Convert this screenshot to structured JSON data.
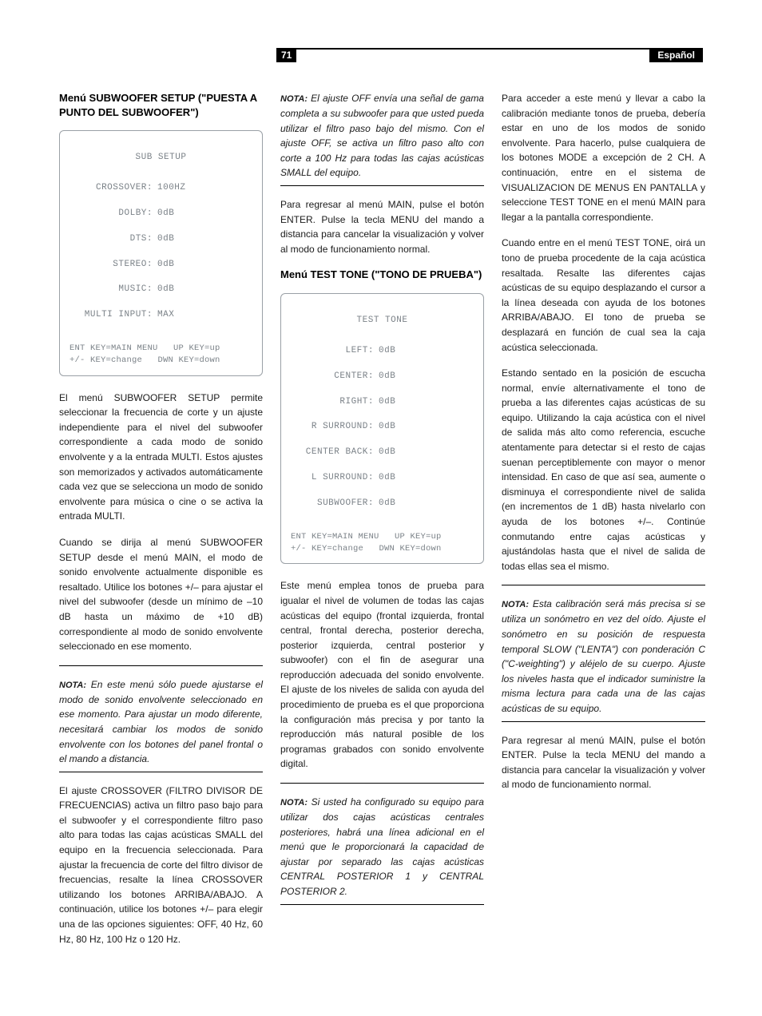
{
  "header": {
    "page_number": "71",
    "language": "Español"
  },
  "col1": {
    "h_sub": "Menú SUBWOOFER SETUP (\"PUESTA A PUNTO DEL SUBWOOFER\")",
    "osd_sub": {
      "title": "SUB SETUP",
      "rows": [
        {
          "k": "CROSSOVER:",
          "v": "100HZ"
        },
        {
          "k": "DOLBY:",
          "v": "0dB"
        },
        {
          "k": "DTS:",
          "v": "0dB"
        },
        {
          "k": "STEREO:",
          "v": "0dB"
        },
        {
          "k": "MUSIC:",
          "v": "0dB"
        },
        {
          "k": "MULTI INPUT:",
          "v": "MAX"
        }
      ],
      "footer1": "ENT KEY=MAIN MENU   UP KEY=up",
      "footer2": "+/- KEY=change   DWN KEY=down"
    },
    "p1": "El menú SUBWOOFER SETUP permite seleccionar la frecuencia de corte y un ajuste independiente para el nivel del subwoofer correspondiente a cada modo de sonido envolvente y a la entrada MULTI. Estos ajustes son memorizados y activados automáticamente cada vez que se selecciona un modo de sonido envolvente para música o cine o se activa la entrada MULTI.",
    "p2": "Cuando se dirija al menú SUBWOOFER SETUP desde el menú MAIN, el modo de sonido envolvente actualmente disponible es resaltado. Utilice los botones +/– para ajustar el nivel del subwoofer (desde un mínimo de –10 dB hasta un máximo de +10 dB) correspondiente al modo de sonido envolvente seleccionado en ese momento.",
    "note1": "En este menú sólo puede ajustarse el modo de sonido envolvente seleccionado en ese momento. Para ajustar un modo diferente, necesitará cambiar los modos de sonido envolvente con los botones del panel frontal o el mando a distancia.",
    "p3": "El ajuste CROSSOVER (FILTRO DIVISOR DE FRECUENCIAS) activa un filtro paso bajo para el subwoofer y el correspondiente filtro paso alto para todas las cajas acústicas SMALL del equipo en la frecuencia seleccionada. Para ajustar la frecuencia de corte del filtro divisor de frecuencias, resalte la línea CROSSOVER utilizando los botones ARRIBA/ABAJO. A continuación, utilice los botones +/– para elegir una de las opciones siguientes: OFF, 40 Hz, 60 Hz, 80 Hz, 100 Hz o 120 Hz."
  },
  "col2": {
    "note1": "El ajuste OFF envía una señal de gama completa a su subwoofer para que usted pueda utilizar el filtro paso bajo del mismo. Con el ajuste OFF, se activa un filtro paso alto con corte a 100 Hz para todas las cajas acústicas SMALL del equipo.",
    "p1": "Para regresar al menú MAIN, pulse el botón ENTER. Pulse la tecla MENU del mando a distancia para cancelar la visualización y volver al modo de funcionamiento normal.",
    "h_tt": "Menú TEST TONE (\"TONO DE PRUEBA\")",
    "osd_tt": {
      "title": "TEST TONE",
      "rows": [
        {
          "k": "LEFT:",
          "v": "0dB"
        },
        {
          "k": "CENTER:",
          "v": "0dB"
        },
        {
          "k": "RIGHT:",
          "v": "0dB"
        },
        {
          "k": "R SURROUND:",
          "v": "0dB"
        },
        {
          "k": "CENTER BACK:",
          "v": "0dB"
        },
        {
          "k": "L SURROUND:",
          "v": "0dB"
        },
        {
          "k": "SUBWOOFER:",
          "v": "0dB"
        }
      ],
      "footer1": "ENT KEY=MAIN MENU   UP KEY=up",
      "footer2": "+/- KEY=change   DWN KEY=down"
    },
    "p2": "Este menú emplea tonos de prueba para igualar el nivel de volumen de todas las cajas acústicas del equipo (frontal izquierda, frontal central, frontal derecha, posterior derecha, posterior izquierda, central posterior y subwoofer) con el fin de asegurar una reproducción adecuada del sonido envolvente. El ajuste de los niveles de salida con ayuda del procedimiento de prueba es el que proporciona la configuración más precisa y por tanto la reproducción más natural posible de los programas grabados con sonido envolvente digital.",
    "note2": "Si usted ha configurado su equipo para utilizar dos cajas acústicas centrales posteriores, habrá una línea adicional en el menú que le proporcionará la capacidad de ajustar por separado las cajas acústicas CENTRAL POSTERIOR 1 y CENTRAL POSTERIOR 2."
  },
  "col3": {
    "p1": "Para acceder a este menú y llevar a cabo la calibración mediante tonos de prueba, debería estar en uno de los modos de sonido envolvente. Para hacerlo, pulse cualquiera de los botones MODE a excepción de 2 CH. A continuación, entre en el sistema de VISUALIZACION DE MENUS EN PANTALLA y seleccione TEST TONE en el menú MAIN para llegar a la pantalla correspondiente.",
    "p2": "Cuando entre en el menú TEST TONE, oirá un tono de prueba procedente de la caja acústica resaltada. Resalte las diferentes cajas acústicas de su equipo desplazando el cursor a la línea deseada con ayuda de los botones ARRIBA/ABAJO. El tono de prueba se desplazará en función de cual sea la caja acústica seleccionada.",
    "p3": "Estando sentado en la posición de escucha normal, envíe alternativamente el tono de prueba a las diferentes cajas acústicas de su equipo. Utilizando la caja acústica con el nivel de salida más alto como referencia, escuche atentamente para detectar si el resto de cajas suenan perceptiblemente con mayor o menor intensidad. En caso de que así sea, aumente o disminuya el correspondiente nivel de salida (en incrementos de 1 dB) hasta nivelarlo con ayuda de los botones +/–. Continúe conmutando entre cajas acústicas y ajustándolas hasta que el nivel de salida de todas ellas sea el mismo.",
    "note1": "Esta calibración será más precisa si se utiliza un sonómetro en vez del oído. Ajuste el sonómetro en su posición de respuesta temporal SLOW (\"LENTA\") con ponderación C (\"C-weighting\") y aléjelo de su cuerpo. Ajuste los niveles hasta que el indicador suministre la misma lectura para cada una de las cajas acústicas de su equipo.",
    "p4": "Para regresar al menú MAIN, pulse el botón ENTER. Pulse la tecla MENU del mando a distancia para cancelar la visualización y volver al modo de funcionamiento normal."
  },
  "labels": {
    "nota": "NOTA:"
  }
}
